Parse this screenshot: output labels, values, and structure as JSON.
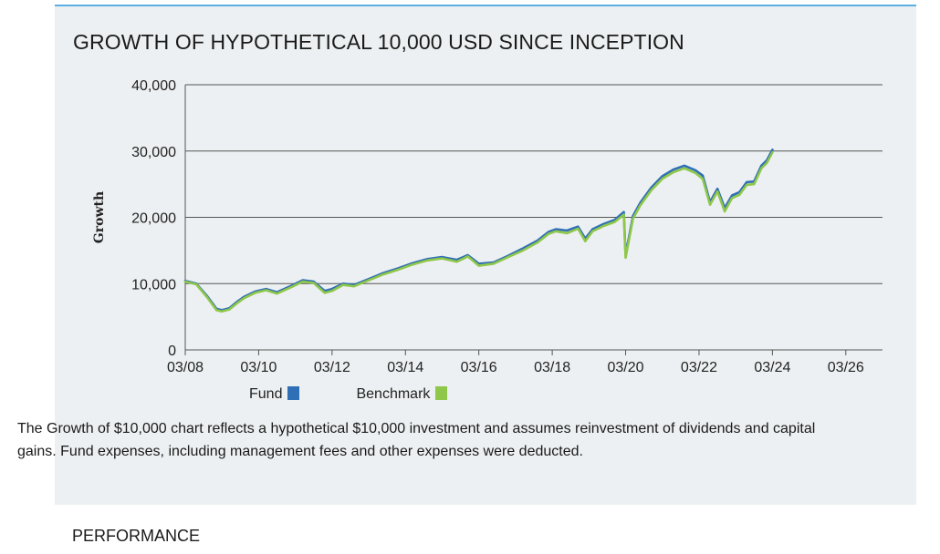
{
  "title": "GROWTH OF HYPOTHETICAL 10,000 USD SINCE INCEPTION",
  "legend": {
    "fund": "Fund",
    "benchmark": "Benchmark"
  },
  "disclaimer": "The Growth of $10,000 chart reflects a hypothetical $10,000 investment and assumes reinvestment of dividends and capital gains. Fund expenses, including management fees and other expenses were deducted.",
  "next_section": "PERFORMANCE",
  "colors": {
    "fund": "#2f6fb5",
    "benchmark": "#8fc74a",
    "accent": "#5aaee3",
    "grid": "#555555"
  },
  "chart_data": {
    "type": "line",
    "ylabel": "Growth",
    "ylim": [
      0,
      40000
    ],
    "yticks": [
      0,
      10000,
      20000,
      30000,
      40000
    ],
    "ytick_labels": [
      "0",
      "10,000",
      "20,000",
      "30,000",
      "40,000"
    ],
    "xlim": [
      2008.0,
      2027.0
    ],
    "xticks": [
      2008,
      2010,
      2012,
      2014,
      2016,
      2018,
      2020,
      2022,
      2024,
      2026
    ],
    "xtick_labels": [
      "03/08",
      "03/10",
      "03/12",
      "03/14",
      "03/16",
      "03/18",
      "03/20",
      "03/22",
      "03/24",
      "03/26"
    ],
    "grid": "horizontal",
    "series": [
      {
        "name": "Fund",
        "x": [
          2008.0,
          2008.3,
          2008.6,
          2008.85,
          2009.0,
          2009.2,
          2009.4,
          2009.6,
          2009.9,
          2010.2,
          2010.5,
          2010.9,
          2011.2,
          2011.5,
          2011.8,
          2012.0,
          2012.3,
          2012.6,
          2013.0,
          2013.4,
          2013.8,
          2014.2,
          2014.6,
          2015.0,
          2015.4,
          2015.7,
          2016.0,
          2016.4,
          2016.8,
          2017.2,
          2017.6,
          2017.9,
          2018.1,
          2018.4,
          2018.7,
          2018.9,
          2019.1,
          2019.4,
          2019.7,
          2019.95,
          2020.0,
          2020.2,
          2020.4,
          2020.7,
          2021.0,
          2021.3,
          2021.6,
          2021.9,
          2022.1,
          2022.3,
          2022.5,
          2022.7,
          2022.9,
          2023.1,
          2023.3,
          2023.5,
          2023.7,
          2023.85,
          2024.0
        ],
        "values": [
          10400,
          10000,
          8100,
          6200,
          6000,
          6300,
          7200,
          8000,
          8800,
          9200,
          8700,
          9700,
          10500,
          10300,
          8900,
          9200,
          10000,
          9800,
          10700,
          11600,
          12300,
          13100,
          13700,
          14000,
          13600,
          14300,
          13000,
          13200,
          14200,
          15300,
          16500,
          17800,
          18200,
          18000,
          18600,
          16800,
          18200,
          19000,
          19600,
          20800,
          14300,
          20200,
          22200,
          24500,
          26200,
          27200,
          27800,
          27100,
          26300,
          22300,
          24300,
          21400,
          23300,
          23800,
          25300,
          25400,
          27800,
          28600,
          30200
        ]
      },
      {
        "name": "Benchmark",
        "x": [
          2008.0,
          2008.3,
          2008.6,
          2008.85,
          2009.0,
          2009.2,
          2009.4,
          2009.6,
          2009.9,
          2010.2,
          2010.5,
          2010.9,
          2011.2,
          2011.5,
          2011.8,
          2012.0,
          2012.3,
          2012.6,
          2013.0,
          2013.4,
          2013.8,
          2014.2,
          2014.6,
          2015.0,
          2015.4,
          2015.7,
          2016.0,
          2016.4,
          2016.8,
          2017.2,
          2017.6,
          2017.9,
          2018.1,
          2018.4,
          2018.7,
          2018.9,
          2019.1,
          2019.4,
          2019.7,
          2019.95,
          2020.0,
          2020.2,
          2020.4,
          2020.7,
          2021.0,
          2021.3,
          2021.6,
          2021.9,
          2022.1,
          2022.3,
          2022.5,
          2022.7,
          2022.9,
          2023.1,
          2023.3,
          2023.5,
          2023.7,
          2023.85,
          2024.0
        ],
        "values": [
          10300,
          9900,
          7900,
          6000,
          5800,
          6100,
          7000,
          7800,
          8600,
          9000,
          8500,
          9500,
          10300,
          10100,
          8600,
          8900,
          9800,
          9600,
          10500,
          11400,
          12100,
          12900,
          13500,
          13800,
          13300,
          14100,
          12700,
          13000,
          14000,
          15000,
          16200,
          17500,
          17900,
          17600,
          18300,
          16400,
          17900,
          18700,
          19300,
          20400,
          13900,
          19800,
          21800,
          24100,
          25800,
          26800,
          27400,
          26700,
          25800,
          21900,
          23900,
          20900,
          22900,
          23400,
          24900,
          25000,
          27400,
          28200,
          29800
        ]
      }
    ]
  }
}
